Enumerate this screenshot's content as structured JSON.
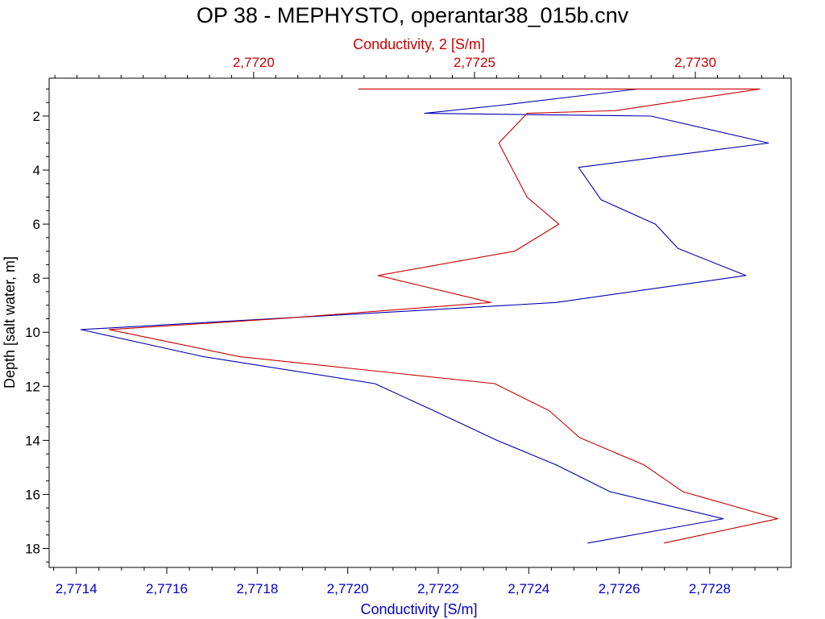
{
  "chart_data": {
    "type": "line",
    "title": "OP 38 - MEPHYSTO, operantar38_015b.cnv",
    "colors": {
      "bottom_series": "#0000b0",
      "top_series": "#cc0000",
      "frame": "#000000",
      "bottom_axis_text": "#0000cc",
      "top_axis_text": "#cc0000"
    },
    "y_axis": {
      "label": "Depth [salt water, m]",
      "range": [
        0.6,
        18.7
      ],
      "inverted": true,
      "major_ticks": [
        2,
        4,
        6,
        8,
        10,
        12,
        14,
        16,
        18
      ],
      "tick_labels": [
        "2",
        "4",
        "6",
        "8",
        "10",
        "12",
        "14",
        "16",
        "18"
      ],
      "minor_step": 0.5
    },
    "x_bottom": {
      "label": "Conductivity [S/m]",
      "range": [
        2.77134,
        2.77298
      ],
      "major_ticks": [
        2.7714,
        2.7716,
        2.7718,
        2.772,
        2.7722,
        2.7724,
        2.7726,
        2.7728
      ],
      "tick_labels": [
        "2,7714",
        "2,7716",
        "2,7718",
        "2,7720",
        "2,7722",
        "2,7724",
        "2,7726",
        "2,7728"
      ],
      "minor_step": 5e-05
    },
    "x_top": {
      "label": "Conductivity, 2 [S/m]",
      "range": [
        2.771537,
        2.773217
      ],
      "major_ticks": [
        2.772,
        2.7725,
        2.773
      ],
      "tick_labels": [
        "2,7720",
        "2,7725",
        "2,7730"
      ],
      "minor_step": 5e-05
    },
    "series": [
      {
        "axis": "bottom",
        "points": [
          {
            "x": 2.77264,
            "y": 1.0
          },
          {
            "x": 2.77234,
            "y": 1.6
          },
          {
            "x": 2.77217,
            "y": 1.9
          },
          {
            "x": 2.77267,
            "y": 2.0
          },
          {
            "x": 2.77293,
            "y": 3.0
          },
          {
            "x": 2.77251,
            "y": 3.9
          },
          {
            "x": 2.77256,
            "y": 5.1
          },
          {
            "x": 2.77268,
            "y": 6.0
          },
          {
            "x": 2.77273,
            "y": 6.9
          },
          {
            "x": 2.77288,
            "y": 7.9
          },
          {
            "x": 2.77246,
            "y": 8.9
          },
          {
            "x": 2.77215,
            "y": 9.2
          },
          {
            "x": 2.77141,
            "y": 9.9
          },
          {
            "x": 2.77168,
            "y": 10.9
          },
          {
            "x": 2.77206,
            "y": 11.9
          },
          {
            "x": 2.77219,
            "y": 12.9
          },
          {
            "x": 2.77233,
            "y": 14.0
          },
          {
            "x": 2.77246,
            "y": 14.9
          },
          {
            "x": 2.77258,
            "y": 15.9
          },
          {
            "x": 2.77283,
            "y": 16.9
          },
          {
            "x": 2.77253,
            "y": 17.8
          }
        ]
      },
      {
        "axis": "top",
        "points": [
          {
            "x": 2.772237,
            "y": 1.0
          },
          {
            "x": 2.773146,
            "y": 1.0
          },
          {
            "x": 2.77282,
            "y": 1.8
          },
          {
            "x": 2.772619,
            "y": 1.9
          },
          {
            "x": 2.772555,
            "y": 3.0
          },
          {
            "x": 2.772587,
            "y": 4.0
          },
          {
            "x": 2.772619,
            "y": 5.0
          },
          {
            "x": 2.772691,
            "y": 6.0
          },
          {
            "x": 2.772591,
            "y": 7.0
          },
          {
            "x": 2.772282,
            "y": 7.9
          },
          {
            "x": 2.772537,
            "y": 8.9
          },
          {
            "x": 2.772055,
            "y": 9.5
          },
          {
            "x": 2.771673,
            "y": 9.9
          },
          {
            "x": 2.771967,
            "y": 10.9
          },
          {
            "x": 2.772546,
            "y": 11.9
          },
          {
            "x": 2.772669,
            "y": 12.9
          },
          {
            "x": 2.772738,
            "y": 13.9
          },
          {
            "x": 2.772883,
            "y": 14.9
          },
          {
            "x": 2.772972,
            "y": 15.9
          },
          {
            "x": 2.773187,
            "y": 16.9
          },
          {
            "x": 2.772929,
            "y": 17.8
          }
        ]
      }
    ]
  }
}
